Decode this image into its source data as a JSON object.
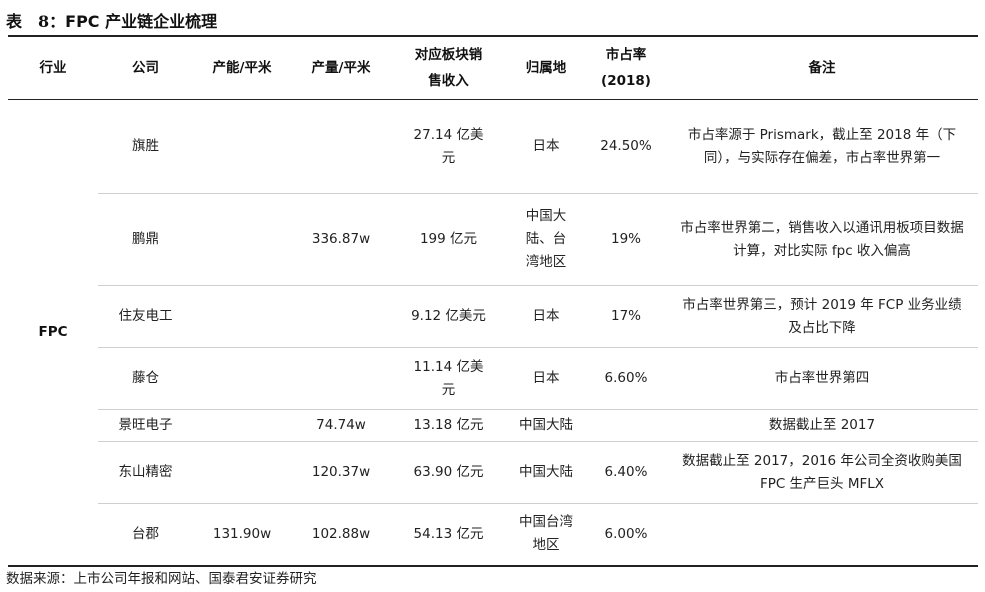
{
  "title": {
    "prefix": "表　8：",
    "main": "FPC 产业链企业梳理"
  },
  "headers": {
    "industry": "行业",
    "company": "公司",
    "capacity": "产能/平米",
    "output": "产量/平米",
    "revenue": "对应板块销售收入",
    "location": "归属地",
    "share_line1": "市占率",
    "share_line2": "(2018)",
    "notes": "备注"
  },
  "industry": "FPC",
  "rows": [
    {
      "company": "旗胜",
      "capacity": "",
      "output": "",
      "revenue": "27.14 亿美元",
      "location": "日本",
      "share": "24.50%",
      "notes": "市占率源于 Prismark，截止至 2018 年（下同），与实际存在偏差，市占率世界第一"
    },
    {
      "company": "鹏鼎",
      "capacity": "",
      "output": "336.87w",
      "revenue": "199 亿元",
      "location": "中国大陆、台湾地区",
      "share": "19%",
      "notes": "市占率世界第二，销售收入以通讯用板项目数据计算，对比实际 fpc 收入偏高"
    },
    {
      "company": "住友电工",
      "capacity": "",
      "output": "",
      "revenue": "9.12 亿美元",
      "location": "日本",
      "share": "17%",
      "notes": "市占率世界第三，预计 2019 年 FCP 业务业绩及占比下降"
    },
    {
      "company": "藤仓",
      "capacity": "",
      "output": "",
      "revenue": "11.14 亿美元",
      "location": "日本",
      "share": "6.60%",
      "notes": "市占率世界第四"
    },
    {
      "company": "景旺电子",
      "capacity": "",
      "output": "74.74w",
      "revenue": "13.18 亿元",
      "location": "中国大陆",
      "share": "",
      "notes": "数据截止至 2017"
    },
    {
      "company": "东山精密",
      "capacity": "",
      "output": "120.37w",
      "revenue": "63.90 亿元",
      "location": "中国大陆",
      "share": "6.40%",
      "notes": "数据截止至 2017，2016 年公司全资收购美国 FPC 生产巨头 MFLX"
    },
    {
      "company": "台郡",
      "capacity": "131.90w",
      "output": "102.88w",
      "revenue": "54.13 亿元",
      "location": "中国台湾地区",
      "share": "6.00%",
      "notes": ""
    }
  ],
  "source": "数据来源：上市公司年报和网站、国泰君安证券研究"
}
